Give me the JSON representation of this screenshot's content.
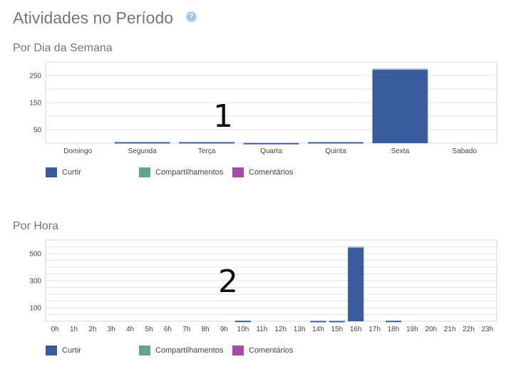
{
  "page": {
    "title": "Atividades no Período",
    "help_icon": "help-icon",
    "help_glyph": "?"
  },
  "colors": {
    "curtir": "#3a5b9c",
    "compartilhamentos": "#62a394",
    "comentarios": "#a64ca6",
    "gridline": "#e3e3e3",
    "bar_cap": "#a9b4c7"
  },
  "chart_data": [
    {
      "type": "bar",
      "stacked": true,
      "title": "Por Dia da Semana",
      "categories": [
        "Domingo",
        "Segunda",
        "Terça",
        "Quarta",
        "Quinta",
        "Sexta",
        "Sabado"
      ],
      "series": [
        {
          "name": "Curtir",
          "values": [
            0,
            4,
            4,
            1,
            4,
            272,
            0
          ]
        },
        {
          "name": "Compartilhamentos",
          "values": [
            0,
            0,
            0,
            0,
            0,
            0,
            0
          ]
        },
        {
          "name": "Comentários",
          "values": [
            0,
            0,
            0,
            0,
            0,
            4,
            0
          ]
        }
      ],
      "yticks": [
        50,
        150,
        250
      ],
      "ylim": [
        0,
        300
      ],
      "grid": true,
      "legend": "bottom-left",
      "annotation": "1"
    },
    {
      "type": "bar",
      "stacked": true,
      "title": "Por Hora",
      "categories": [
        "0h",
        "1h",
        "2h",
        "3h",
        "4h",
        "5h",
        "6h",
        "7h",
        "8h",
        "9h",
        "10h",
        "11h",
        "12h",
        "13h",
        "14h",
        "15h",
        "16h",
        "17h",
        "18h",
        "19h",
        "20h",
        "21h",
        "22h",
        "23h"
      ],
      "series": [
        {
          "name": "Curtir",
          "values": [
            0,
            0,
            0,
            0,
            0,
            0,
            0,
            0,
            0,
            0,
            4,
            0,
            0,
            0,
            3,
            3,
            545,
            0,
            4,
            0,
            0,
            0,
            0,
            0
          ]
        },
        {
          "name": "Compartilhamentos",
          "values": [
            0,
            0,
            0,
            0,
            0,
            0,
            0,
            0,
            0,
            0,
            0,
            0,
            0,
            0,
            0,
            0,
            0,
            0,
            0,
            0,
            0,
            0,
            0,
            0
          ]
        },
        {
          "name": "Comentários",
          "values": [
            0,
            0,
            0,
            0,
            0,
            0,
            0,
            0,
            0,
            0,
            0,
            0,
            0,
            0,
            0,
            0,
            8,
            0,
            0,
            0,
            0,
            0,
            0,
            0
          ]
        }
      ],
      "yticks": [
        100,
        300,
        500
      ],
      "ylim": [
        0,
        600
      ],
      "grid": true,
      "legend": "bottom-left",
      "annotation": "2"
    }
  ]
}
